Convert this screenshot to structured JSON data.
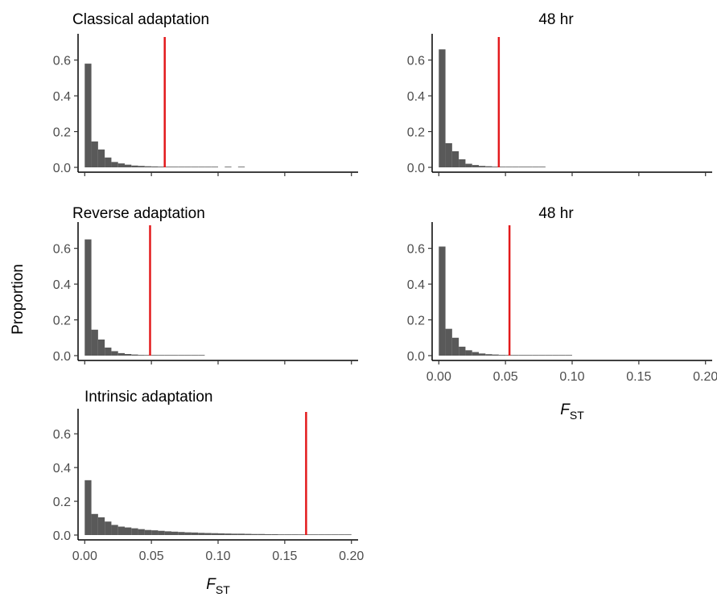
{
  "chart_data": [
    {
      "type": "bar",
      "title": "Classical adaptation",
      "xlim": [
        -0.005,
        0.205
      ],
      "ylim": [
        0,
        0.72
      ],
      "yticks": [
        0.0,
        0.2,
        0.4,
        0.6
      ],
      "xticks": [
        0.0,
        0.05,
        0.1,
        0.15,
        0.2
      ],
      "bin_width": 0.005,
      "bin_starts": [
        0.0,
        0.005,
        0.01,
        0.015,
        0.02,
        0.025,
        0.03,
        0.035,
        0.04,
        0.045,
        0.05,
        0.055,
        0.06,
        0.065,
        0.07,
        0.075,
        0.08,
        0.085,
        0.09,
        0.095,
        0.1,
        0.105,
        0.11,
        0.115
      ],
      "values": [
        0.58,
        0.145,
        0.1,
        0.055,
        0.03,
        0.022,
        0.015,
        0.01,
        0.008,
        0.006,
        0.005,
        0.004,
        0.003,
        0.003,
        0.002,
        0.002,
        0.002,
        0.002,
        0.001,
        0.001,
        0.0,
        0.001,
        0.0,
        0.001
      ],
      "vline": 0.06
    },
    {
      "type": "bar",
      "title": "48 hr",
      "xlim": [
        -0.005,
        0.205
      ],
      "ylim": [
        0,
        0.72
      ],
      "yticks": [
        0.0,
        0.2,
        0.4,
        0.6
      ],
      "xticks": [
        0.0,
        0.05,
        0.1,
        0.15,
        0.2
      ],
      "bin_width": 0.005,
      "bin_starts": [
        0.0,
        0.005,
        0.01,
        0.015,
        0.02,
        0.025,
        0.03,
        0.035,
        0.04,
        0.045,
        0.05,
        0.055,
        0.06,
        0.065,
        0.07,
        0.075
      ],
      "values": [
        0.66,
        0.135,
        0.09,
        0.045,
        0.02,
        0.013,
        0.008,
        0.006,
        0.004,
        0.003,
        0.002,
        0.002,
        0.001,
        0.001,
        0.001,
        0.001
      ],
      "vline": 0.045
    },
    {
      "type": "bar",
      "title": "Reverse adaptation",
      "xlim": [
        -0.005,
        0.205
      ],
      "ylim": [
        0,
        0.72
      ],
      "yticks": [
        0.0,
        0.2,
        0.4,
        0.6
      ],
      "xticks": [
        0.0,
        0.05,
        0.1,
        0.15,
        0.2
      ],
      "bin_width": 0.005,
      "bin_starts": [
        0.0,
        0.005,
        0.01,
        0.015,
        0.02,
        0.025,
        0.03,
        0.035,
        0.04,
        0.045,
        0.05,
        0.055,
        0.06,
        0.065,
        0.07,
        0.075,
        0.08,
        0.085
      ],
      "values": [
        0.65,
        0.145,
        0.09,
        0.045,
        0.025,
        0.014,
        0.009,
        0.006,
        0.004,
        0.003,
        0.002,
        0.002,
        0.001,
        0.001,
        0.001,
        0.001,
        0.001,
        0.001
      ],
      "vline": 0.049
    },
    {
      "type": "bar",
      "title": "48 hr",
      "xlim": [
        -0.005,
        0.205
      ],
      "ylim": [
        0,
        0.72
      ],
      "yticks": [
        0.0,
        0.2,
        0.4,
        0.6
      ],
      "xticks": [
        0.0,
        0.05,
        0.1,
        0.15,
        0.2
      ],
      "bin_width": 0.005,
      "bin_starts": [
        0.0,
        0.005,
        0.01,
        0.015,
        0.02,
        0.025,
        0.03,
        0.035,
        0.04,
        0.045,
        0.05,
        0.055,
        0.06,
        0.065,
        0.07,
        0.075,
        0.08,
        0.085,
        0.09,
        0.095
      ],
      "values": [
        0.61,
        0.15,
        0.1,
        0.05,
        0.03,
        0.02,
        0.012,
        0.008,
        0.006,
        0.004,
        0.003,
        0.002,
        0.002,
        0.001,
        0.001,
        0.001,
        0.001,
        0.001,
        0.001,
        0.001
      ],
      "vline": 0.053
    },
    {
      "type": "bar",
      "title": "Intrinsic adaptation",
      "xlim": [
        -0.005,
        0.205
      ],
      "ylim": [
        0,
        0.72
      ],
      "yticks": [
        0.0,
        0.2,
        0.4,
        0.6
      ],
      "xticks": [
        0.0,
        0.05,
        0.1,
        0.15,
        0.2
      ],
      "bin_width": 0.005,
      "bin_starts": [
        0.0,
        0.005,
        0.01,
        0.015,
        0.02,
        0.025,
        0.03,
        0.035,
        0.04,
        0.045,
        0.05,
        0.055,
        0.06,
        0.065,
        0.07,
        0.075,
        0.08,
        0.085,
        0.09,
        0.095,
        0.1,
        0.105,
        0.11,
        0.115,
        0.12,
        0.125,
        0.13,
        0.135,
        0.14,
        0.145,
        0.15,
        0.155,
        0.16,
        0.165,
        0.17,
        0.175,
        0.18,
        0.185,
        0.19,
        0.195
      ],
      "values": [
        0.325,
        0.125,
        0.105,
        0.08,
        0.06,
        0.05,
        0.045,
        0.04,
        0.035,
        0.03,
        0.028,
        0.025,
        0.022,
        0.02,
        0.018,
        0.016,
        0.015,
        0.013,
        0.012,
        0.011,
        0.01,
        0.009,
        0.008,
        0.008,
        0.007,
        0.006,
        0.006,
        0.005,
        0.005,
        0.004,
        0.004,
        0.004,
        0.003,
        0.003,
        0.003,
        0.003,
        0.002,
        0.002,
        0.002,
        0.002
      ],
      "vline": 0.166
    }
  ],
  "shared": {
    "ylabel": "Proportion",
    "xlabel_main": "F",
    "xlabel_sub": "ST",
    "bar_color": "#595959",
    "vline_color": "#e31a1c"
  }
}
